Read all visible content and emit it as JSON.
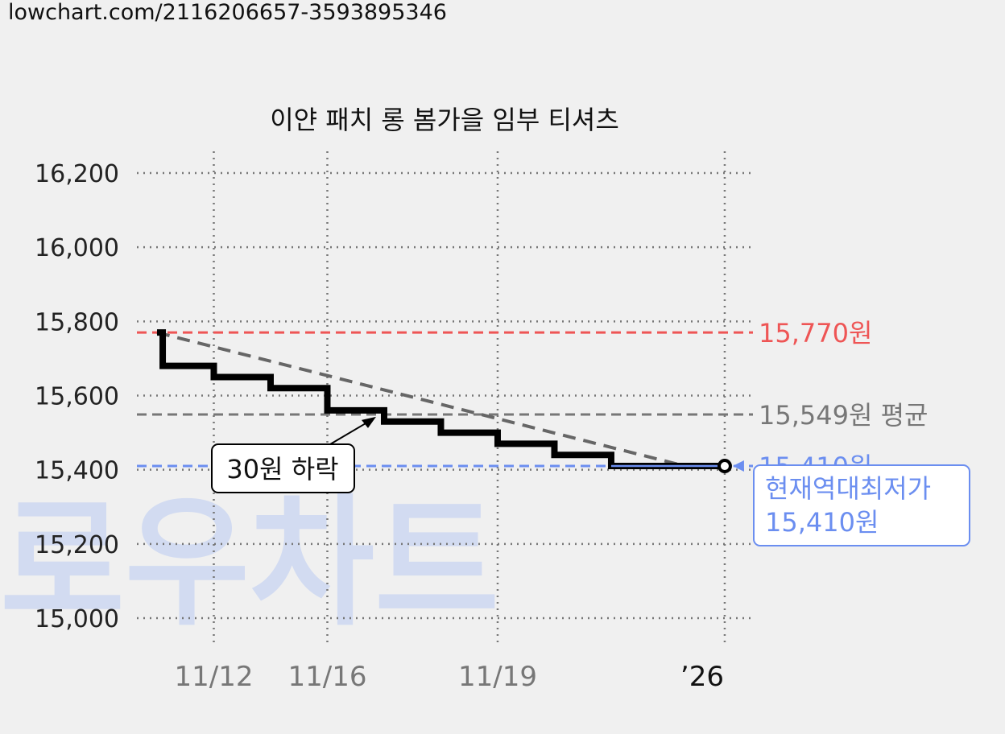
{
  "page": {
    "url_text": "lowchart.com/2116206657-3593895346",
    "watermark": "로우차트"
  },
  "chart_data": {
    "type": "line",
    "step": true,
    "title": "이얀 패치 롱 봄가을 임부 티셔츠",
    "xlabel": "",
    "ylabel": "",
    "ylim": [
      15000,
      16200
    ],
    "ytick_labels": [
      "16,200",
      "16,000",
      "15,800",
      "15,600",
      "15,400",
      "15,200",
      "15,000"
    ],
    "ytick_values": [
      16200,
      16000,
      15800,
      15600,
      15400,
      15200,
      15000
    ],
    "xtick_labels": [
      "11/12",
      "11/16",
      "11/19",
      "’26"
    ],
    "xlim": [
      0,
      10.1
    ],
    "xtick_positions": [
      1.0,
      3.0,
      6.0,
      10.0
    ],
    "grid": true,
    "series": [
      {
        "color": "#000000",
        "x": [
          0.0,
          0.1,
          1.0,
          2.0,
          3.0,
          4.0,
          5.0,
          6.0,
          7.0,
          8.0,
          10.0
        ],
        "y": [
          15770,
          15680,
          15650,
          15620,
          15560,
          15530,
          15500,
          15470,
          15440,
          15410,
          15410
        ]
      }
    ],
    "trend_line": {
      "color": "#666666",
      "x": [
        0.0,
        9.3
      ],
      "y": [
        15770,
        15410
      ]
    },
    "reference_lines": [
      {
        "value": 15770,
        "label": "15,770원",
        "color": "#ee5555"
      },
      {
        "value": 15549,
        "label": "15,549원 평균",
        "color": "#777777"
      },
      {
        "value": 15410,
        "label": "15,410원",
        "color": "#6b8ef0"
      }
    ],
    "annotations": [
      {
        "text": "30원 하락",
        "x": 4.0,
        "y": 15560
      },
      {
        "text_lines": [
          "현재역대최저가",
          "15,410원"
        ],
        "x": 10.0,
        "y": 15410,
        "color": "#6b8ef0"
      }
    ]
  }
}
